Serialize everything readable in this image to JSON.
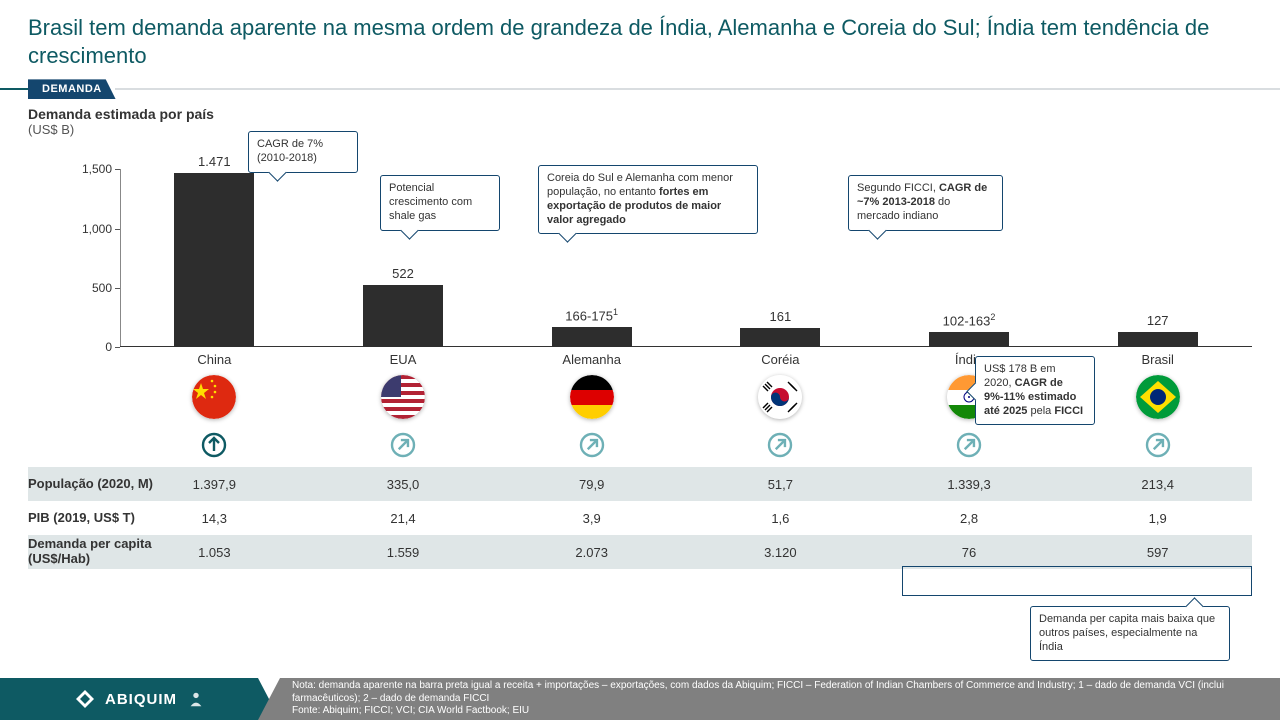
{
  "title": "Brasil tem demanda aparente na mesma ordem de grandeza de Índia, Alemanha e Coreia do Sul; Índia tem tendência de crescimento",
  "title_color": "#0e5a63",
  "tag": "DEMANDA",
  "chart": {
    "title": "Demanda estimada por país",
    "subtitle": "(US$ B)",
    "y_ticks": [
      "0",
      "500",
      "1,000",
      "1,500"
    ],
    "y_max": 1500,
    "bar_color": "#2d2d2d",
    "countries": [
      {
        "name": "China",
        "value": 1471,
        "label": "1.471"
      },
      {
        "name": "EUA",
        "value": 522,
        "label": "522"
      },
      {
        "name": "Alemanha",
        "value": 170,
        "label": "166-175",
        "sup": "1"
      },
      {
        "name": "Coréia",
        "value": 161,
        "label": "161"
      },
      {
        "name": "Índia",
        "value": 130,
        "label": "102-163",
        "sup": "2"
      },
      {
        "name": "Brasil",
        "value": 127,
        "label": "127"
      }
    ]
  },
  "callouts": {
    "china": "CAGR de 7% (2010-2018)",
    "eua": "Potencial crescimento com shale gas",
    "de_kr": "Coreia do Sul e Alemanha com menor população, no entanto <b>fortes em exportação de produtos de maior valor agregado</b>",
    "india1": "Segundo FICCI, <b>CAGR de ~7% 2013-2018</b> do mercado indiano",
    "india2": "US$ 178 B em 2020, <b>CAGR de 9%-11% estimado até 2025</b> pela <b>FICCI</b>",
    "percap": "Demanda per capita mais baixa que outros países, especialmente na Índia"
  },
  "arrows": [
    "up",
    "up-right",
    "up-right",
    "up-right",
    "up-right",
    "up-right"
  ],
  "first_arrow_strong": true,
  "arrow_colors": {
    "strong": "#0e5a63",
    "light": "#6eb0b6"
  },
  "flags": [
    "cn",
    "us",
    "de",
    "kr",
    "in",
    "br"
  ],
  "table": {
    "rows": [
      {
        "label": "População (2020, M)",
        "band": true,
        "cells": [
          "1.397,9",
          "335,0",
          "79,9",
          "51,7",
          "1.339,3",
          "213,4"
        ]
      },
      {
        "label": "PIB (2019, US$ T)",
        "band": false,
        "cells": [
          "14,3",
          "21,4",
          "3,9",
          "1,6",
          "2,8",
          "1,9"
        ]
      },
      {
        "label": "Demanda per capita (US$/Hab)",
        "band": true,
        "cells": [
          "1.053",
          "1.559",
          "2.073",
          "3.120",
          "76",
          "597"
        ]
      }
    ]
  },
  "footer": {
    "brand": "ABIQUIM",
    "note1": "Nota: demanda aparente na barra preta igual a receita + importações – exportações, com dados da Abiquim; FICCI – Federation of Indian Chambers of Commerce and Industry; 1 – dado de demanda VCI (inclui farmacêuticos); 2 – dado de demanda FICCI",
    "note2": "Fonte: Abiquim; FICCI; VCI; CIA World Factbook; EIU"
  }
}
